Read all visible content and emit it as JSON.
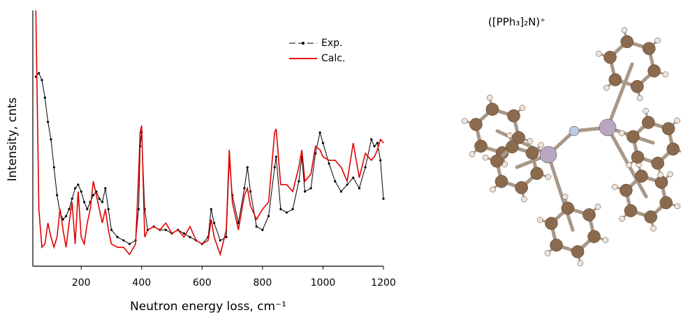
{
  "chart_data": {
    "type": "line",
    "xlabel": "Neutron energy loss, cm⁻¹",
    "ylabel": "Intensity, cnts",
    "x": [
      50,
      60,
      70,
      80,
      90,
      100,
      110,
      120,
      130,
      140,
      150,
      160,
      170,
      180,
      190,
      200,
      210,
      220,
      230,
      240,
      250,
      260,
      270,
      280,
      290,
      300,
      320,
      340,
      360,
      380,
      390,
      395,
      400,
      410,
      420,
      440,
      460,
      480,
      500,
      520,
      540,
      560,
      580,
      600,
      620,
      630,
      640,
      660,
      680,
      690,
      700,
      720,
      740,
      750,
      760,
      780,
      800,
      820,
      840,
      845,
      860,
      880,
      900,
      920,
      930,
      940,
      960,
      975,
      990,
      1000,
      1020,
      1040,
      1060,
      1080,
      1100,
      1120,
      1140,
      1160,
      1170,
      1180,
      1190,
      1200
    ],
    "series": [
      {
        "name": "Exp.",
        "color": "#000000",
        "markers": true,
        "values": [
          7.41,
          7.55,
          7.28,
          6.59,
          5.64,
          4.96,
          3.87,
          2.78,
          2.1,
          1.83,
          1.96,
          2.23,
          2.64,
          3.05,
          3.19,
          2.92,
          2.51,
          2.23,
          2.51,
          2.78,
          2.92,
          2.64,
          2.51,
          3.05,
          2.23,
          1.42,
          1.14,
          1.01,
          0.87,
          1.01,
          2.23,
          4.69,
          5.23,
          2.23,
          1.42,
          1.55,
          1.42,
          1.42,
          1.28,
          1.42,
          1.28,
          1.14,
          1.01,
          0.87,
          1.14,
          2.23,
          1.69,
          1.01,
          1.14,
          4.14,
          2.78,
          1.69,
          3.05,
          3.87,
          2.92,
          1.55,
          1.42,
          1.96,
          3.87,
          4.28,
          2.23,
          2.1,
          2.23,
          3.32,
          4.28,
          2.92,
          3.05,
          4.41,
          5.23,
          4.82,
          4.01,
          3.32,
          2.92,
          3.19,
          3.46,
          3.05,
          3.87,
          4.96,
          4.69,
          4.82,
          4.14,
          2.64
        ]
      },
      {
        "name": "Calc.",
        "color": "#e00000",
        "markers": false,
        "values": [
          10.0,
          2.23,
          0.74,
          0.87,
          1.69,
          1.14,
          0.74,
          1.14,
          2.23,
          1.42,
          0.74,
          1.69,
          2.51,
          0.87,
          2.92,
          1.14,
          0.87,
          1.69,
          2.23,
          3.32,
          2.78,
          2.23,
          1.69,
          2.23,
          1.42,
          0.87,
          0.74,
          0.74,
          0.46,
          0.87,
          3.6,
          5.23,
          5.5,
          1.14,
          1.42,
          1.55,
          1.42,
          1.69,
          1.28,
          1.42,
          1.14,
          1.55,
          1.01,
          0.87,
          1.01,
          1.83,
          1.14,
          0.46,
          1.42,
          4.55,
          2.51,
          1.42,
          2.78,
          3.05,
          2.37,
          1.83,
          2.23,
          2.51,
          5.23,
          5.37,
          3.19,
          3.19,
          2.92,
          3.87,
          4.55,
          3.32,
          3.6,
          4.69,
          4.55,
          4.28,
          4.14,
          4.14,
          3.87,
          3.32,
          4.82,
          3.46,
          4.41,
          4.14,
          4.28,
          4.55,
          4.96,
          4.82
        ]
      }
    ],
    "xlim": [
      40,
      1200
    ],
    "ylim": [
      0,
      10
    ],
    "xticks": [
      200,
      400,
      600,
      800,
      1000,
      1200
    ],
    "legend": "top-right"
  },
  "molecule_label": "([PPh₃]₂N)⁺"
}
